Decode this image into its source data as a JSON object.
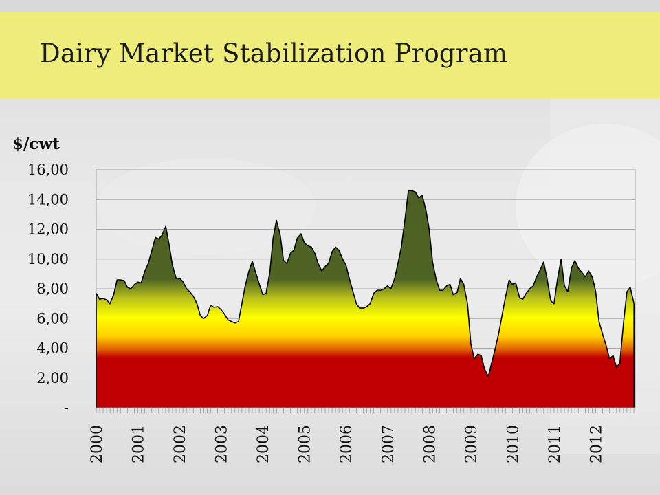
{
  "slide": {
    "title": "Dairy Market Stabilization Program",
    "y_unit_label": "$/cwt"
  },
  "colors": {
    "title_band": "#efed70",
    "fill_low": "#c00000",
    "fill_mid": "#ffff00",
    "fill_high": "#4a5f22",
    "line": "#000000",
    "grid": "#a6a6a6"
  },
  "chart_data": {
    "type": "area",
    "title": "Dairy Market Stabilization Program",
    "ylabel": "$/cwt",
    "xlabel": "",
    "ylim": [
      0,
      16
    ],
    "xlim": [
      2000,
      2012.917
    ],
    "grid": true,
    "y_ticks": [
      0,
      2,
      4,
      6,
      8,
      10,
      12,
      14,
      16
    ],
    "y_tick_labels": [
      "-",
      "2,00",
      "4,00",
      "6,00",
      "8,00",
      "10,00",
      "12,00",
      "14,00",
      "16,00"
    ],
    "x_tick_labels": [
      "2000",
      "2001",
      "2002",
      "2003",
      "2004",
      "2005",
      "2006",
      "2007",
      "2008",
      "2009",
      "2010",
      "2011",
      "2012"
    ],
    "x": [
      2000.0,
      2000.08,
      2000.17,
      2000.25,
      2000.33,
      2000.42,
      2000.5,
      2000.58,
      2000.67,
      2000.75,
      2000.83,
      2000.92,
      2001.0,
      2001.08,
      2001.17,
      2001.25,
      2001.33,
      2001.42,
      2001.5,
      2001.58,
      2001.67,
      2001.75,
      2001.83,
      2001.92,
      2002.0,
      2002.08,
      2002.17,
      2002.25,
      2002.33,
      2002.42,
      2002.5,
      2002.58,
      2002.67,
      2002.75,
      2002.83,
      2002.92,
      2003.0,
      2003.08,
      2003.17,
      2003.25,
      2003.33,
      2003.42,
      2003.5,
      2003.58,
      2003.67,
      2003.75,
      2003.83,
      2003.92,
      2004.0,
      2004.08,
      2004.17,
      2004.25,
      2004.33,
      2004.42,
      2004.5,
      2004.58,
      2004.67,
      2004.75,
      2004.83,
      2004.92,
      2005.0,
      2005.08,
      2005.17,
      2005.25,
      2005.33,
      2005.42,
      2005.5,
      2005.58,
      2005.67,
      2005.75,
      2005.83,
      2005.92,
      2006.0,
      2006.08,
      2006.17,
      2006.25,
      2006.33,
      2006.42,
      2006.5,
      2006.58,
      2006.67,
      2006.75,
      2006.83,
      2006.92,
      2007.0,
      2007.08,
      2007.17,
      2007.25,
      2007.33,
      2007.42,
      2007.5,
      2007.58,
      2007.67,
      2007.75,
      2007.83,
      2007.92,
      2008.0,
      2008.08,
      2008.17,
      2008.25,
      2008.33,
      2008.42,
      2008.5,
      2008.58,
      2008.67,
      2008.75,
      2008.83,
      2008.92,
      2009.0,
      2009.08,
      2009.17,
      2009.25,
      2009.33,
      2009.42,
      2009.5,
      2009.58,
      2009.67,
      2009.75,
      2009.83,
      2009.92,
      2010.0,
      2010.08,
      2010.17,
      2010.25,
      2010.33,
      2010.42,
      2010.5,
      2010.58,
      2010.67,
      2010.75,
      2010.83,
      2010.92,
      2011.0,
      2011.08,
      2011.17,
      2011.25,
      2011.33,
      2011.42,
      2011.5,
      2011.58,
      2011.67,
      2011.75,
      2011.83,
      2011.92,
      2012.0,
      2012.08,
      2012.17,
      2012.25,
      2012.33,
      2012.42,
      2012.5,
      2012.58,
      2012.67,
      2012.75,
      2012.83,
      2012.92
    ],
    "series": [
      {
        "values": [
          7.7,
          7.3,
          7.35,
          7.25,
          7.0,
          7.6,
          8.6,
          8.6,
          8.55,
          8.1,
          8.0,
          8.3,
          8.45,
          8.4,
          9.2,
          9.7,
          10.5,
          11.45,
          11.35,
          11.6,
          12.2,
          11.0,
          9.6,
          8.7,
          8.7,
          8.5,
          8.0,
          7.8,
          7.5,
          7.0,
          6.2,
          6.0,
          6.2,
          6.9,
          6.75,
          6.8,
          6.6,
          6.3,
          5.9,
          5.8,
          5.7,
          5.8,
          7.0,
          8.2,
          9.2,
          9.85,
          9.1,
          8.3,
          7.6,
          7.7,
          9.1,
          11.4,
          12.6,
          11.6,
          9.9,
          9.7,
          10.4,
          10.6,
          11.4,
          11.7,
          11.1,
          10.9,
          10.8,
          10.4,
          9.7,
          9.2,
          9.5,
          9.7,
          10.5,
          10.8,
          10.6,
          10.0,
          9.6,
          8.7,
          7.8,
          7.0,
          6.7,
          6.7,
          6.8,
          7.0,
          7.7,
          7.9,
          7.9,
          8.0,
          8.2,
          8.0,
          8.7,
          9.7,
          10.8,
          12.7,
          14.6,
          14.6,
          14.5,
          14.1,
          14.3,
          13.3,
          12.0,
          9.8,
          8.6,
          7.9,
          7.9,
          8.2,
          8.3,
          7.6,
          7.75,
          8.7,
          8.3,
          7.0,
          4.3,
          3.3,
          3.6,
          3.5,
          2.6,
          2.1,
          3.0,
          3.9,
          5.0,
          6.2,
          7.4,
          8.6,
          8.3,
          8.4,
          7.4,
          7.3,
          7.7,
          8.0,
          8.2,
          8.8,
          9.3,
          9.8,
          8.7,
          7.2,
          7.0,
          8.6,
          10.0,
          8.2,
          7.8,
          9.4,
          9.9,
          9.4,
          9.1,
          8.8,
          9.2,
          8.8,
          7.8,
          5.8,
          4.9,
          4.2,
          3.3,
          3.5,
          2.7,
          3.0,
          5.7,
          7.8,
          8.1,
          7.0
        ]
      }
    ]
  }
}
